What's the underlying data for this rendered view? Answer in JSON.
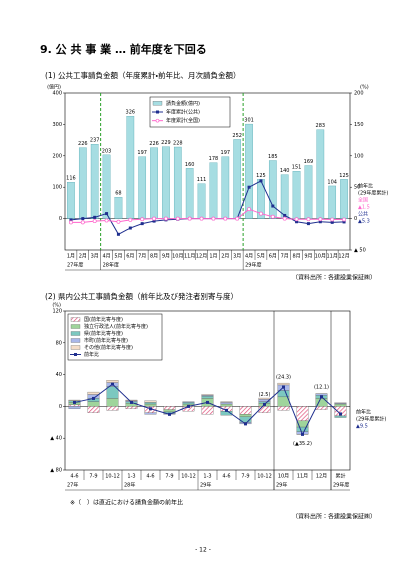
{
  "title": "9. 公 共 事 業 … 前年度を下回る",
  "note": "※（　）は直近における請負金額の前年比",
  "page_number": "- 12 -",
  "chart_data": [
    {
      "type": "bar",
      "heading": "(1) 公共工事請負金額（年度累計・前年比、月次請負金額）",
      "source": "（資料出所：各建設業保証㈱）",
      "y_unit": "(億円)",
      "y2_unit": "(%)",
      "categories": [
        "1月",
        "2月",
        "3月",
        "4月",
        "5月",
        "6月",
        "7月",
        "8月",
        "9月",
        "10月",
        "11月",
        "12月",
        "1月",
        "2月",
        "3月",
        "4月",
        "5月",
        "6月",
        "7月",
        "8月",
        "9月",
        "10月",
        "11月",
        "12月"
      ],
      "category_groups": [
        "27年度",
        null,
        null,
        "28年度",
        null,
        null,
        null,
        null,
        null,
        null,
        null,
        null,
        null,
        null,
        null,
        "29年度",
        null,
        null,
        null,
        null,
        null,
        null,
        null,
        null
      ],
      "ylim": [
        -100,
        400
      ],
      "yticks": [
        0,
        100,
        200,
        300,
        400
      ],
      "y2lim": [
        -50,
        200
      ],
      "y2ticks": [
        {
          "value": -50,
          "label": "▲ 50"
        },
        0,
        50,
        100,
        150,
        200
      ],
      "bar_labels": true,
      "stacked": false,
      "series": [
        {
          "name": "請負金額(億円)",
          "type": "bar",
          "color": "#a6dde2",
          "values": [
            116,
            226,
            237,
            203,
            68,
            326,
            197,
            226,
            229,
            228,
            160,
            111,
            178,
            197,
            252,
            301,
            125,
            185,
            140,
            151,
            169,
            283,
            104,
            125
          ]
        },
        {
          "name": "年度累計(公共)",
          "type": "line",
          "axis": "y2",
          "color": "#1f2f8f",
          "marker": "square",
          "values": [
            -2,
            0,
            2,
            8,
            -25,
            -15,
            -8,
            -4,
            -2,
            -1,
            0,
            0,
            0,
            0,
            0,
            50,
            60,
            20,
            5,
            -5,
            -8,
            -5,
            -6,
            -5.3
          ]
        },
        {
          "name": "年度累計(全国)",
          "type": "line",
          "axis": "y2",
          "color": "#ff66cc",
          "marker": "circle",
          "values": [
            -6,
            -6,
            -4,
            -3,
            -5,
            -2,
            -1,
            0,
            0,
            0,
            0,
            0,
            0,
            0,
            0,
            15,
            8,
            3,
            0,
            -1,
            -1,
            -1,
            -1.5,
            -1.5
          ]
        }
      ],
      "side_notes": [
        {
          "text": "前年比",
          "color": "#000000"
        },
        {
          "text": "(29年度累計)",
          "color": "#000000"
        },
        {
          "text": "全国",
          "color": "#ff66cc"
        },
        {
          "text": "▲1.5",
          "color": "#ff66cc"
        },
        {
          "text": "公共",
          "color": "#1f2f8f"
        },
        {
          "text": "▲5.3",
          "color": "#1f2f8f"
        }
      ]
    },
    {
      "type": "bar",
      "heading": "(2) 県内公共工事請負金額（前年比及び発注者別寄与度）",
      "source": "（資料出所：各建設業保証㈱）",
      "y_unit": "(%)",
      "categories": [
        "4-6",
        "7-9",
        "10-12",
        "1-3",
        "4-6",
        "7-9",
        "10-12",
        "1-3",
        "4-6",
        "7-9",
        "10-12",
        "10月",
        "11月",
        "12月",
        "累計"
      ],
      "category_groups": [
        "27年",
        null,
        null,
        "28年",
        null,
        null,
        null,
        "29年",
        null,
        null,
        null,
        "29年",
        null,
        null,
        "29年度"
      ],
      "ylim": [
        -80,
        120
      ],
      "yticks": [
        {
          "value": -80,
          "label": "▲ 80"
        },
        {
          "value": -40,
          "label": "▲ 40"
        },
        0,
        40,
        80,
        120
      ],
      "bar_labels": false,
      "stacked": true,
      "series": [
        {
          "name": "国(前年比寄与度)",
          "type": "bar",
          "color": "#e0507a",
          "pattern": "hatch",
          "values": [
            2,
            -8,
            -5,
            -3,
            -8,
            -4,
            -6,
            -10,
            -6,
            -10,
            -8,
            -5,
            -18,
            -4,
            -12
          ]
        },
        {
          "name": "独立行政法人(前年比寄与度)",
          "type": "bar",
          "color": "#9fd49b",
          "values": [
            3,
            6,
            10,
            4,
            3,
            -3,
            3,
            10,
            3,
            -3,
            4,
            12,
            -8,
            10,
            3
          ]
        },
        {
          "name": "県(前年比寄与度)",
          "type": "bar",
          "color": "#7cc8c0",
          "values": [
            2,
            4,
            15,
            2,
            2,
            -2,
            2,
            3,
            -5,
            -7,
            2,
            8,
            -6,
            4,
            -2
          ]
        },
        {
          "name": "市町(前年比寄与度)",
          "type": "bar",
          "color": "#aab8ea",
          "values": [
            -3,
            5,
            5,
            1,
            -2,
            -1,
            1,
            1,
            2,
            -2,
            3,
            7,
            -3,
            2,
            1
          ]
        },
        {
          "name": "その他(前年比寄与度)",
          "type": "bar",
          "color": "#f5ddc8",
          "values": [
            1,
            3,
            3,
            1,
            2,
            0,
            0,
            1,
            1,
            0,
            1.5,
            2.3,
            -0.2,
            0.1,
            0.5
          ]
        },
        {
          "name": "前年比",
          "type": "line",
          "color": "#1f2f8f",
          "marker": "square",
          "values": [
            5,
            10,
            28,
            5,
            -3,
            -10,
            0,
            5,
            -5,
            -22,
            2.5,
            24.3,
            -35.2,
            12.1,
            -9.5
          ],
          "value_labels": [
            null,
            null,
            null,
            null,
            null,
            null,
            null,
            null,
            null,
            null,
            "(2.5)",
            "(24.3)",
            "(▲35.2)",
            "(12.1)",
            null
          ]
        }
      ],
      "side_notes": [
        {
          "text": "前年比",
          "color": "#000000"
        },
        {
          "text": "(29年度累計)",
          "color": "#000000"
        },
        {
          "text": "▲9.5",
          "color": "#1f2f8f"
        }
      ]
    }
  ]
}
